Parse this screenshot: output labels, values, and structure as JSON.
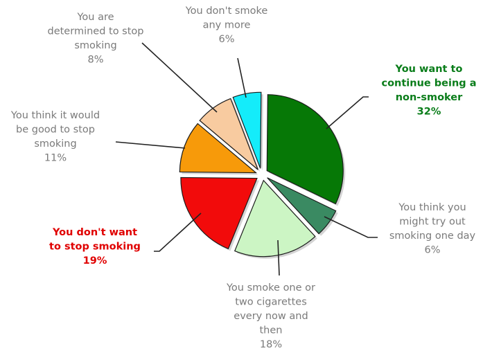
{
  "chart_data": {
    "type": "pie",
    "title": "",
    "slices": [
      {
        "label": "You want to continue being a non-smoker",
        "value": 32,
        "display": [
          "You want to",
          "continue being a",
          "non-smoker",
          "32%"
        ],
        "color": "#067806",
        "emphasis": "green"
      },
      {
        "label": "You think you might try out smoking one day",
        "value": 6,
        "display": [
          "You think you",
          "might try out",
          "smoking one day",
          "6%"
        ],
        "color": "#3a8a62",
        "emphasis": "none"
      },
      {
        "label": "You smoke one or two cigarettes every now and then",
        "value": 18,
        "display": [
          "You smoke one or",
          "two cigarettes",
          "every now and",
          "then",
          "18%"
        ],
        "color": "#ccf5c4",
        "emphasis": "none"
      },
      {
        "label": "You don't want to stop smoking",
        "value": 19,
        "display": [
          "You don't want",
          "to stop smoking",
          "19%"
        ],
        "color": "#f20b0b",
        "emphasis": "red"
      },
      {
        "label": "You think it would be good to stop smoking",
        "value": 11,
        "display": [
          "You think it would",
          "be good to stop",
          "smoking",
          "11%"
        ],
        "color": "#f79a0a",
        "emphasis": "none"
      },
      {
        "label": "You are determined to stop smoking",
        "value": 8,
        "display": [
          "You are",
          "determined to stop",
          "smoking",
          "8%"
        ],
        "color": "#f8cba0",
        "emphasis": "none"
      },
      {
        "label": "You don't smoke any more",
        "value": 6,
        "display": [
          "You don't smoke",
          "any more",
          "6%"
        ],
        "color": "#14ecfa",
        "emphasis": "none"
      }
    ]
  }
}
